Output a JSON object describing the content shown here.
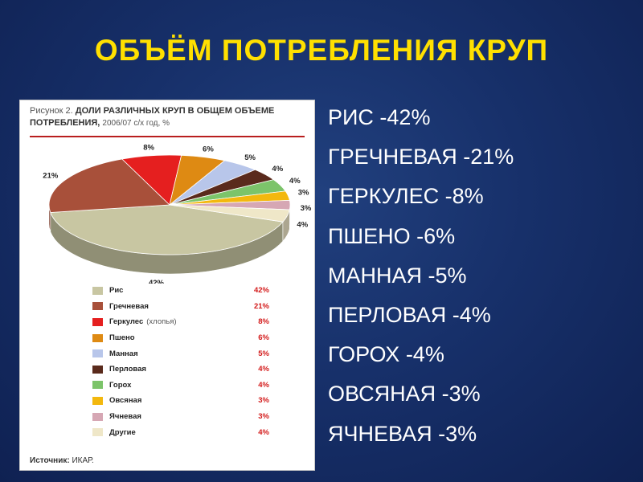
{
  "slide": {
    "title": "ОБЪЁМ ПОТРЕБЛЕНИЯ КРУП",
    "list": [
      "РИС -42%",
      "ГРЕЧНЕВАЯ -21%",
      "ГЕРКУЛЕС -8%",
      "ПШЕНО -6%",
      "МАННАЯ -5%",
      "ПЕРЛОВАЯ -4%",
      "ГОРОХ -4%",
      "ОВСЯНАЯ -3%",
      "ЯЧНЕВАЯ -3%"
    ]
  },
  "figure": {
    "caption_label": "Рисунок 2.",
    "caption_title": "ДОЛИ РАЗЛИЧНЫХ КРУП В ОБЩЕМ ОБЪЕМЕ ПОТРЕБЛЕНИЯ,",
    "caption_sub": "2006/07 с/х год, %",
    "source_label": "Источник:",
    "source_value": "ИКАР."
  },
  "colors": {
    "background": "#17306a",
    "title": "#ffe000",
    "list_text": "#ffffff",
    "legend_value": "#d31a1a"
  },
  "chart_data": {
    "type": "pie",
    "style": "3d",
    "title": "ДОЛИ РАЗЛИЧНЫХ КРУП В ОБЩЕМ ОБЪЕМЕ ПОТРЕБЛЕНИЯ, 2006/07 с/х год, %",
    "categories": [
      "Рис",
      "Гречневая",
      "Геркулес",
      "Пшено",
      "Манная",
      "Перловая",
      "Горох",
      "Овсяная",
      "Ячневая",
      "Другие"
    ],
    "legend_notes": [
      "",
      "",
      "(хлопья)",
      "",
      "",
      "",
      "",
      "",
      "",
      ""
    ],
    "values": [
      42,
      21,
      8,
      6,
      5,
      4,
      4,
      3,
      3,
      4
    ],
    "labels": [
      "42%",
      "21%",
      "8%",
      "6%",
      "5%",
      "4%",
      "4%",
      "3%",
      "3%",
      "4%"
    ],
    "legend_values": [
      "42%",
      "21%",
      "8%",
      "6%",
      "5%",
      "4%",
      "4%",
      "3%",
      "3%",
      "4%"
    ],
    "colors": [
      "#c8c6a2",
      "#a8503a",
      "#e51f1f",
      "#de8a13",
      "#b8c6ea",
      "#5a2a1c",
      "#7cc46a",
      "#f3b80e",
      "#d6a7b4",
      "#efe7c8"
    ],
    "legend": "bottom"
  }
}
